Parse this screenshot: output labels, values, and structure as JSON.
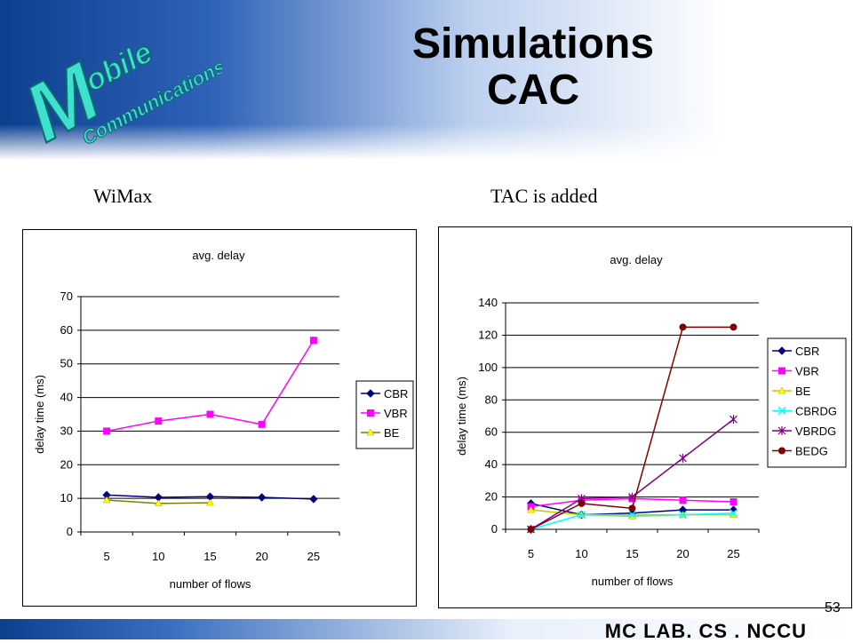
{
  "slide": {
    "title_line1": "Simulations",
    "title_line2": "CAC",
    "logo_word1": "Mobile",
    "logo_word2": "Communications",
    "subtitle_left": "WiMax",
    "subtitle_right": "TAC is added",
    "footer": "MC LAB. CS . NCCU",
    "page_number": "53"
  },
  "colors": {
    "CBR": "#00007f",
    "VBR": "#ff00ff",
    "BE": "#d4d400",
    "BE_line": "#7f7f00",
    "CBRDG": "#00ffff",
    "VBRDG": "#800080",
    "BEDG": "#800000"
  },
  "chart_data": [
    {
      "type": "line",
      "title": "avg. delay",
      "xlabel": "number of flows",
      "ylabel": "delay time (ms)",
      "categories": [
        "5",
        "10",
        "15",
        "20",
        "25"
      ],
      "ylim": [
        0,
        70
      ],
      "yticks": [
        0,
        10,
        20,
        30,
        40,
        50,
        60,
        70
      ],
      "grid": true,
      "legend": "right",
      "series": [
        {
          "name": "CBR",
          "values": [
            11,
            10.3,
            10.5,
            10.3,
            9.8
          ],
          "marker": "diamond",
          "color": "#00007f",
          "line": "#00007f"
        },
        {
          "name": "VBR",
          "values": [
            30,
            33,
            35,
            32,
            57
          ],
          "marker": "square",
          "color": "#ff00ff",
          "line": "#ff00ff"
        },
        {
          "name": "BE",
          "values": [
            9.5,
            8.5,
            8.7,
            null,
            null
          ],
          "marker": "triangle",
          "color": "#ffff00",
          "line": "#7f7f00"
        }
      ]
    },
    {
      "type": "line",
      "title": "avg. delay",
      "xlabel": "number of flows",
      "ylabel": "delay time (ms)",
      "categories": [
        "5",
        "10",
        "15",
        "20",
        "25"
      ],
      "ylim": [
        0,
        140
      ],
      "yticks": [
        0,
        20,
        40,
        60,
        80,
        100,
        120,
        140
      ],
      "grid": true,
      "legend": "right",
      "series": [
        {
          "name": "CBR",
          "values": [
            16,
            9,
            10,
            12,
            12
          ],
          "marker": "diamond",
          "color": "#00007f",
          "line": "#00007f"
        },
        {
          "name": "VBR",
          "values": [
            14,
            18,
            19,
            18,
            17
          ],
          "marker": "square",
          "color": "#ff00ff",
          "line": "#ff00ff"
        },
        {
          "name": "BE",
          "values": [
            12,
            9,
            8,
            9,
            9
          ],
          "marker": "triangle",
          "color": "#ffff00",
          "line": "#c8c800"
        },
        {
          "name": "CBRDG",
          "values": [
            0,
            9,
            9,
            9,
            10
          ],
          "marker": "x",
          "color": "#00ffff",
          "line": "#00ffff"
        },
        {
          "name": "VBRDG",
          "values": [
            0,
            19,
            20,
            44,
            68
          ],
          "marker": "star",
          "color": "#800080",
          "line": "#800080"
        },
        {
          "name": "BEDG",
          "values": [
            0,
            16,
            13,
            125,
            125
          ],
          "marker": "circle",
          "color": "#800000",
          "line": "#800000"
        }
      ]
    }
  ]
}
